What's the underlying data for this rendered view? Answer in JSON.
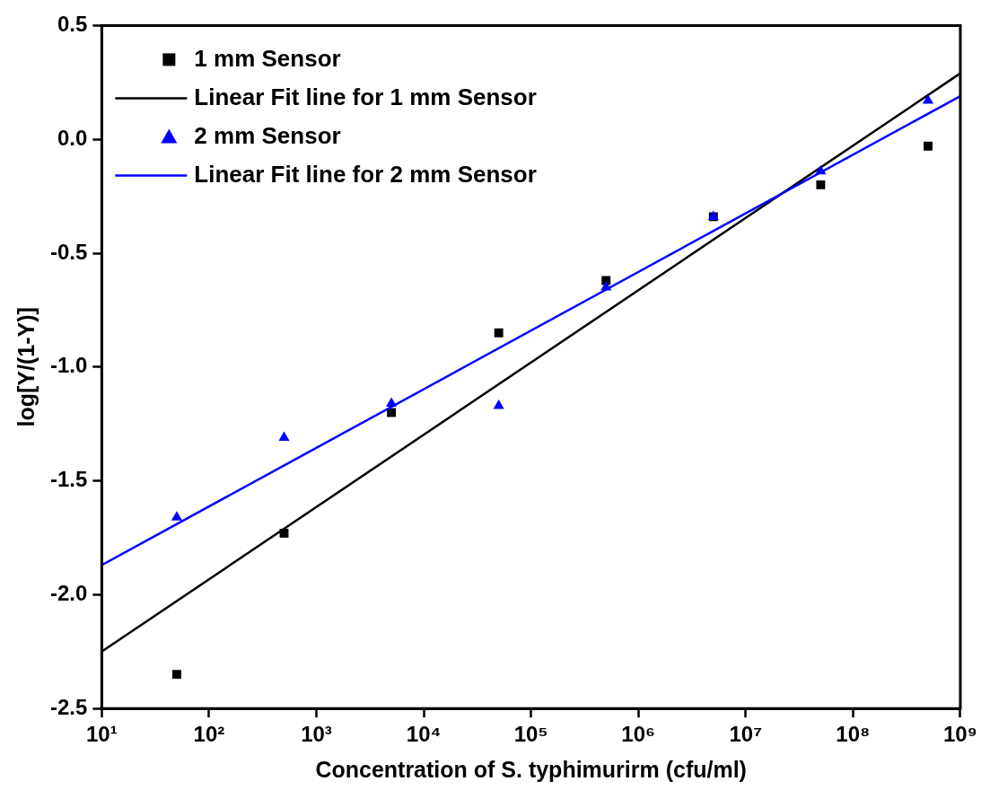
{
  "chart_data": {
    "type": "scatter",
    "xlabel": "Concentration of S. typhimurirm (cfu/ml)",
    "ylabel": "log[Y/(1-Y)]",
    "log": "x",
    "xlim": [
      10,
      1000000000
    ],
    "ylim": [
      -2.5,
      0.5
    ],
    "xticks": [
      {
        "value": 10,
        "label": "10¹"
      },
      {
        "value": 100,
        "label": "10²"
      },
      {
        "value": 1000,
        "label": "10³"
      },
      {
        "value": 10000,
        "label": "10⁴"
      },
      {
        "value": 100000,
        "label": "10⁵"
      },
      {
        "value": 1000000,
        "label": "10⁶"
      },
      {
        "value": 10000000,
        "label": "10⁷"
      },
      {
        "value": 100000000,
        "label": "10⁸"
      },
      {
        "value": 1000000000,
        "label": "10⁹"
      }
    ],
    "yticks": [
      {
        "value": 0.5,
        "label": "0.5"
      },
      {
        "value": 0,
        "label": "0.0"
      },
      {
        "value": -0.5,
        "label": "-0.5"
      },
      {
        "value": -1,
        "label": "-1.0"
      },
      {
        "value": -1.5,
        "label": "-1.5"
      },
      {
        "value": -2,
        "label": "-2.0"
      },
      {
        "value": -2.5,
        "label": "-2.5"
      }
    ],
    "legend": "top left",
    "grid": false,
    "series": [
      {
        "name": "1 mm Sensor",
        "marker": "square",
        "color": "#000000",
        "x": [
          50,
          500,
          5000,
          50000,
          500000,
          5000000,
          50000000,
          500000000
        ],
        "values": [
          -2.35,
          -1.73,
          -1.2,
          -0.85,
          -0.62,
          -0.34,
          -0.2,
          -0.03
        ]
      },
      {
        "name": "Linear Fit line for 1 mm Sensor",
        "type": "line",
        "marker": "none",
        "color": "#000000",
        "x": [
          10,
          1000000000
        ],
        "values": [
          -2.25,
          0.29
        ]
      },
      {
        "name": "2 mm Sensor",
        "marker": "triangle",
        "color": "#0000ff",
        "x": [
          50,
          500,
          5000,
          50000,
          500000,
          5000000,
          50000000,
          500000000
        ],
        "values": [
          -1.66,
          -1.31,
          -1.16,
          -1.17,
          -0.65,
          -0.34,
          -0.14,
          0.17
        ]
      },
      {
        "name": "Linear Fit line for 2 mm Sensor",
        "type": "line",
        "marker": "none",
        "color": "#0000ff",
        "x": [
          10,
          1000000000
        ],
        "values": [
          -1.87,
          0.19
        ]
      }
    ]
  }
}
